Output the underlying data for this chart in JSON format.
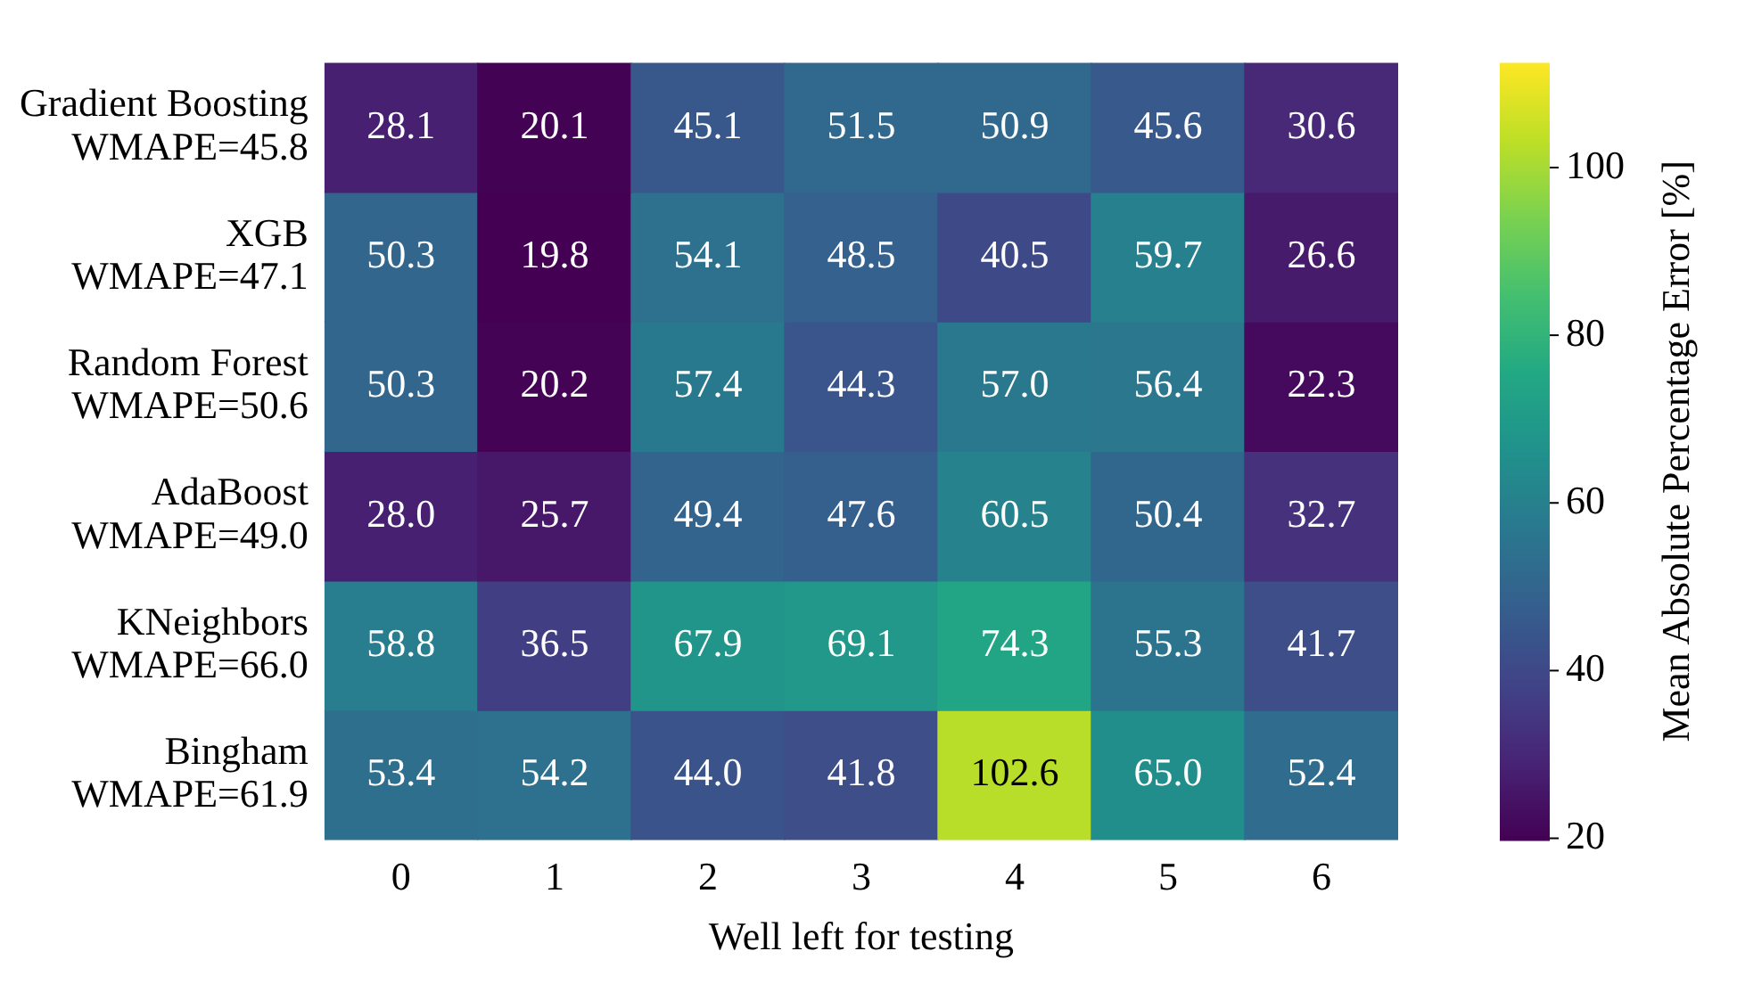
{
  "chart_data": {
    "type": "heatmap",
    "xlabel": "Well left for testing",
    "clabel": "Mean Absolute Percentage Error [%]",
    "categories": [
      "0",
      "1",
      "2",
      "3",
      "4",
      "5",
      "6"
    ],
    "y_categories": [
      "Gradient Boosting\nWMAPE=45.8",
      "XGB\nWMAPE=47.1",
      "Random Forest\nWMAPE=50.6",
      "AdaBoost\nWMAPE=49.0",
      "KNeighbors\nWMAPE=66.0",
      "Bingham\nWMAPE=61.9"
    ],
    "cells": [
      [
        28.1,
        20.1,
        45.1,
        51.5,
        50.9,
        45.6,
        30.6
      ],
      [
        50.3,
        19.8,
        54.1,
        48.5,
        40.5,
        59.7,
        26.6
      ],
      [
        50.3,
        20.2,
        57.4,
        44.3,
        57.0,
        56.4,
        22.3
      ],
      [
        28.0,
        25.7,
        49.4,
        47.6,
        60.5,
        50.4,
        32.7
      ],
      [
        58.8,
        36.5,
        67.9,
        69.1,
        74.3,
        55.3,
        41.7
      ],
      [
        53.4,
        54.2,
        44.0,
        41.8,
        102.6,
        65.0,
        52.4
      ]
    ],
    "cell_labels": [
      [
        "28.1",
        "20.1",
        "45.1",
        "51.5",
        "50.9",
        "45.6",
        "30.6"
      ],
      [
        "50.3",
        "19.8",
        "54.1",
        "48.5",
        "40.5",
        "59.7",
        "26.6"
      ],
      [
        "50.3",
        "20.2",
        "57.4",
        "44.3",
        "57.0",
        "56.4",
        "22.3"
      ],
      [
        "28.0",
        "25.7",
        "49.4",
        "47.6",
        "60.5",
        "50.4",
        "32.7"
      ],
      [
        "58.8",
        "36.5",
        "67.9",
        "69.1",
        "74.3",
        "55.3",
        "41.7"
      ],
      [
        "53.4",
        "54.2",
        "44.0",
        "41.8",
        "102.6",
        "65.0",
        "52.4"
      ]
    ],
    "clim": [
      19.8,
      112.5
    ],
    "cticks": [
      20,
      40,
      60,
      80,
      100
    ]
  }
}
